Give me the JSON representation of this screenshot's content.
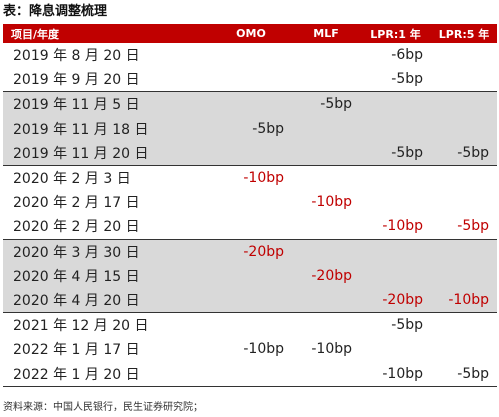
{
  "title": "表：降息调整梳理",
  "table": {
    "headers": [
      "项目/年度",
      "OMO",
      "MLF",
      "LPR:1 年",
      "LPR:5 年"
    ],
    "groups": [
      {
        "shaded": false,
        "rows": [
          {
            "date": "2019 年 8 月 20 日",
            "omo": "",
            "mlf": "",
            "lpr1": "-6bp",
            "lpr5": ""
          },
          {
            "date": "2019 年 9 月 20 日",
            "omo": "",
            "mlf": "",
            "lpr1": "-5bp",
            "lpr5": ""
          }
        ]
      },
      {
        "shaded": true,
        "rows": [
          {
            "date": "2019 年 11 月 5 日",
            "omo": "",
            "mlf": "-5bp",
            "lpr1": "",
            "lpr5": ""
          },
          {
            "date": "2019 年 11 月 18 日",
            "omo": "-5bp",
            "mlf": "",
            "lpr1": "",
            "lpr5": ""
          },
          {
            "date": "2019 年 11 月 20 日",
            "omo": "",
            "mlf": "",
            "lpr1": "-5bp",
            "lpr5": "-5bp"
          }
        ]
      },
      {
        "shaded": false,
        "rows": [
          {
            "date": "2020 年 2 月 3 日",
            "omo": "-10bp",
            "mlf": "",
            "lpr1": "",
            "lpr5": ""
          },
          {
            "date": "2020 年 2 月 17 日",
            "omo": "",
            "mlf": "-10bp",
            "lpr1": "",
            "lpr5": ""
          },
          {
            "date": "2020 年 2 月 20 日",
            "omo": "",
            "mlf": "",
            "lpr1": "-10bp",
            "lpr5": "-5bp"
          }
        ]
      },
      {
        "shaded": true,
        "rows": [
          {
            "date": "2020 年 3 月 30 日",
            "omo": "-20bp",
            "mlf": "",
            "lpr1": "",
            "lpr5": ""
          },
          {
            "date": "2020 年 4 月 15 日",
            "omo": "",
            "mlf": "-20bp",
            "lpr1": "",
            "lpr5": ""
          },
          {
            "date": "2020 年 4 月 20 日",
            "omo": "",
            "mlf": "",
            "lpr1": "-20bp",
            "lpr5": "-10bp"
          }
        ]
      },
      {
        "shaded": false,
        "rows": [
          {
            "date": "2021 年 12 月 20 日",
            "omo": "",
            "mlf": "",
            "lpr1": "-5bp",
            "lpr5": ""
          },
          {
            "date": "2022 年 1 月 17 日",
            "omo": "-10bp",
            "mlf": "-10bp",
            "lpr1": "",
            "lpr5": ""
          },
          {
            "date": "2022 年 1 月 20 日",
            "omo": "",
            "mlf": "",
            "lpr1": "-10bp",
            "lpr5": "-5bp"
          }
        ]
      }
    ],
    "red_values": [
      "-10bp",
      "-20bp"
    ],
    "red_groups": [
      2,
      3
    ]
  },
  "source": "资料来源：中国人民银行，民生证券研究院；",
  "colors": {
    "header_bg": "#c00000",
    "shade_bg": "#d9d9d9",
    "highlight_text": "#c00000"
  }
}
